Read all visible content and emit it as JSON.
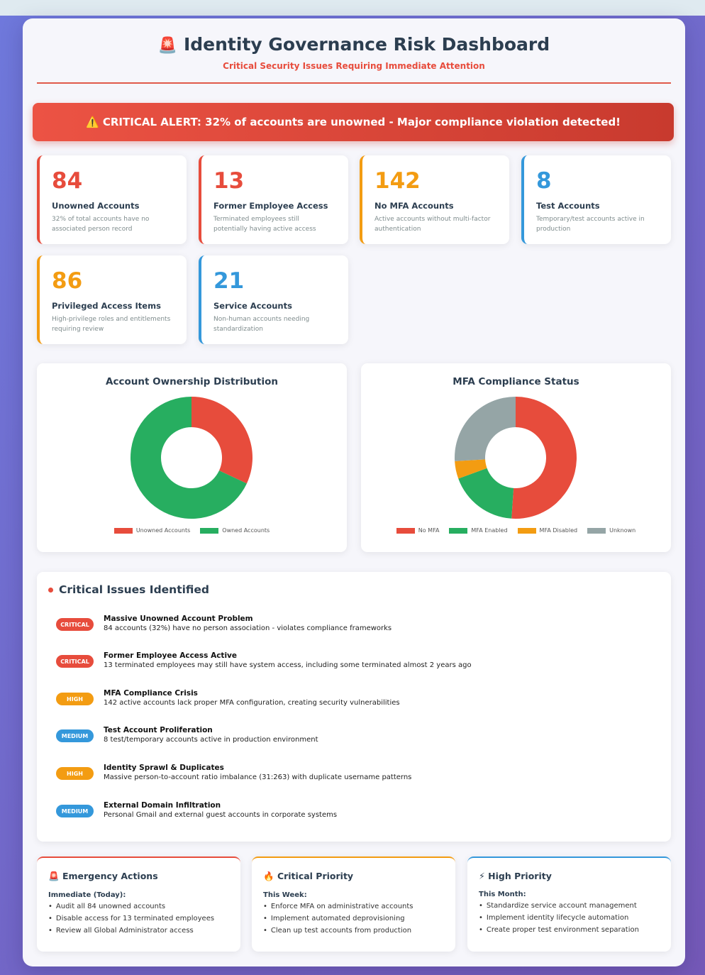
{
  "header": {
    "icon": "siren-icon",
    "title": "Identity Governance Risk Dashboard",
    "subtitle": "Critical Security Issues Requiring Immediate Attention"
  },
  "alert": {
    "text": "⚠️ CRITICAL ALERT: 32% of accounts are unowned - Major compliance violation detected!"
  },
  "colors": {
    "critical": "#e74c3c",
    "high": "#f39c12",
    "medium": "#3498db",
    "success": "#27ae60",
    "unknown": "#95a5a6"
  },
  "stats": [
    {
      "value": "84",
      "title": "Unowned Accounts",
      "desc": "32% of total accounts have no associated person record",
      "color": "#e74c3c"
    },
    {
      "value": "13",
      "title": "Former Employee Access",
      "desc": "Terminated employees still potentially having active access",
      "color": "#e74c3c"
    },
    {
      "value": "142",
      "title": "No MFA Accounts",
      "desc": "Active accounts without multi-factor authentication",
      "color": "#f39c12"
    },
    {
      "value": "8",
      "title": "Test Accounts",
      "desc": "Temporary/test accounts active in production",
      "color": "#3498db"
    },
    {
      "value": "86",
      "title": "Privileged Access Items",
      "desc": "High-privilege roles and entitlements requiring review",
      "color": "#f39c12"
    },
    {
      "value": "21",
      "title": "Service Accounts",
      "desc": "Non-human accounts needing standardization",
      "color": "#3498db"
    }
  ],
  "chart_data": [
    {
      "type": "pie",
      "title": "Account Ownership Distribution",
      "categories": [
        "Unowned Accounts",
        "Owned Accounts"
      ],
      "values": [
        84,
        179
      ],
      "colors": [
        "#e74c3c",
        "#27ae60"
      ],
      "legend": "bottom"
    },
    {
      "type": "pie",
      "title": "MFA Compliance Status",
      "categories": [
        "No MFA",
        "MFA Enabled",
        "MFA Disabled",
        "Unknown"
      ],
      "values": [
        142,
        51,
        13,
        72
      ],
      "colors": [
        "#e74c3c",
        "#27ae60",
        "#f39c12",
        "#95a5a6"
      ],
      "legend": "bottom"
    }
  ],
  "issues": {
    "title": "Critical Issues Identified",
    "items": [
      {
        "badge": "CRITICAL",
        "color": "#e74c3c",
        "title": "Massive Unowned Account Problem",
        "desc": "84 accounts (32%) have no person association - violates compliance frameworks"
      },
      {
        "badge": "CRITICAL",
        "color": "#e74c3c",
        "title": "Former Employee Access Active",
        "desc": "13 terminated employees may still have system access, including some terminated almost 2 years ago"
      },
      {
        "badge": "HIGH",
        "color": "#f39c12",
        "title": "MFA Compliance Crisis",
        "desc": "142 active accounts lack proper MFA configuration, creating security vulnerabilities"
      },
      {
        "badge": "MEDIUM",
        "color": "#3498db",
        "title": "Test Account Proliferation",
        "desc": "8 test/temporary accounts active in production environment"
      },
      {
        "badge": "HIGH",
        "color": "#f39c12",
        "title": "Identity Sprawl & Duplicates",
        "desc": "Massive person-to-account ratio imbalance (31:263) with duplicate username patterns"
      },
      {
        "badge": "MEDIUM",
        "color": "#3498db",
        "title": "External Domain Infiltration",
        "desc": "Personal Gmail and external guest accounts in corporate systems"
      }
    ]
  },
  "actions": [
    {
      "icon": "🚨",
      "title": "Emergency Actions",
      "color": "#e74c3c",
      "sub": "Immediate (Today):",
      "items": [
        "Audit all 84 unowned accounts",
        "Disable access for 13 terminated employees",
        "Review all Global Administrator access"
      ]
    },
    {
      "icon": "🔥",
      "title": "Critical Priority",
      "color": "#f39c12",
      "sub": "This Week:",
      "items": [
        "Enforce MFA on administrative accounts",
        "Implement automated deprovisioning",
        "Clean up test accounts from production"
      ]
    },
    {
      "icon": "⚡",
      "title": "High Priority",
      "color": "#3498db",
      "sub": "This Month:",
      "items": [
        "Standardize service account management",
        "Implement identity lifecycle automation",
        "Create proper test environment separation"
      ]
    }
  ]
}
